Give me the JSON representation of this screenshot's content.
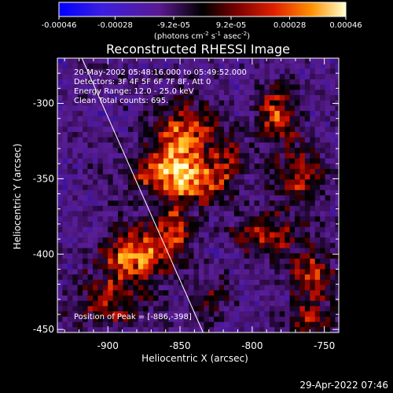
{
  "colorbar": {
    "tick_labels": [
      "-0.00046",
      "-0.00028",
      "-9.2e-05",
      "9.2e-05",
      "0.00028",
      "0.00046"
    ],
    "tick_values": [
      -0.00046,
      -0.00028,
      -9.2e-05,
      9.2e-05,
      0.00028,
      0.00046
    ],
    "range": [
      -0.00046,
      0.00046
    ],
    "units_prefix": "(photons cm",
    "units_sup1": "-2",
    "units_mid1": " s",
    "units_sup2": "-1",
    "units_mid2": " asec",
    "units_sup3": "-2",
    "units_suffix": ")"
  },
  "chart_data": {
    "type": "heatmap",
    "title": "Reconstructed RHESSI Image",
    "xlabel": "Heliocentric X (arcsec)",
    "ylabel": "Heliocentric Y (arcsec)",
    "xlim": [
      -935,
      -740
    ],
    "ylim": [
      -452,
      -270
    ],
    "xticks": [
      -900,
      -850,
      -800,
      -750
    ],
    "xtick_labels": [
      "-900",
      "-850",
      "-800",
      "-750"
    ],
    "yticks": [
      -300,
      -350,
      -400,
      -450
    ],
    "ytick_labels": [
      "-300",
      "-350",
      "-400",
      "-450"
    ],
    "annotations": [
      "20-May-2002 05:48:16.000 to 05:49:52.000",
      "Detectors: 3F 4F 5F 6F 7F 8F, Att 0",
      "Energy Range: 12.0 - 25.0 keV",
      "Clean    Total counts: 695."
    ],
    "peak_label": "Position of Peak = [-886,-398]",
    "peak": [
      -886,
      -398
    ],
    "limb_line": [
      [
        -918,
        -270
      ],
      [
        -834,
        -452
      ]
    ],
    "sources": [
      {
        "x": -850,
        "y": -322,
        "sx": 14,
        "sy": 18,
        "amp": 0.95
      },
      {
        "x": -868,
        "y": -345,
        "sx": 16,
        "sy": 10,
        "amp": 0.75
      },
      {
        "x": -838,
        "y": -352,
        "sx": 12,
        "sy": 10,
        "amp": 0.7
      },
      {
        "x": -884,
        "y": -398,
        "sx": 16,
        "sy": 12,
        "amp": 1.0
      },
      {
        "x": -858,
        "y": -383,
        "sx": 10,
        "sy": 16,
        "amp": 0.7
      },
      {
        "x": -900,
        "y": -430,
        "sx": 18,
        "sy": 12,
        "amp": 0.65
      },
      {
        "x": -784,
        "y": -305,
        "sx": 10,
        "sy": 12,
        "amp": 0.85
      },
      {
        "x": -770,
        "y": -345,
        "sx": 12,
        "sy": 14,
        "amp": 0.75
      },
      {
        "x": -793,
        "y": -385,
        "sx": 16,
        "sy": 10,
        "amp": 0.7
      },
      {
        "x": -760,
        "y": -410,
        "sx": 12,
        "sy": 12,
        "amp": 0.65
      },
      {
        "x": -818,
        "y": -335,
        "sx": 10,
        "sy": 14,
        "amp": 0.5
      },
      {
        "x": -760,
        "y": -440,
        "sx": 12,
        "sy": 10,
        "amp": 0.55
      },
      {
        "x": -830,
        "y": -430,
        "sx": 10,
        "sy": 12,
        "amp": 0.4
      }
    ]
  },
  "footer": {
    "timestamp": "29-Apr-2022 07:46"
  }
}
